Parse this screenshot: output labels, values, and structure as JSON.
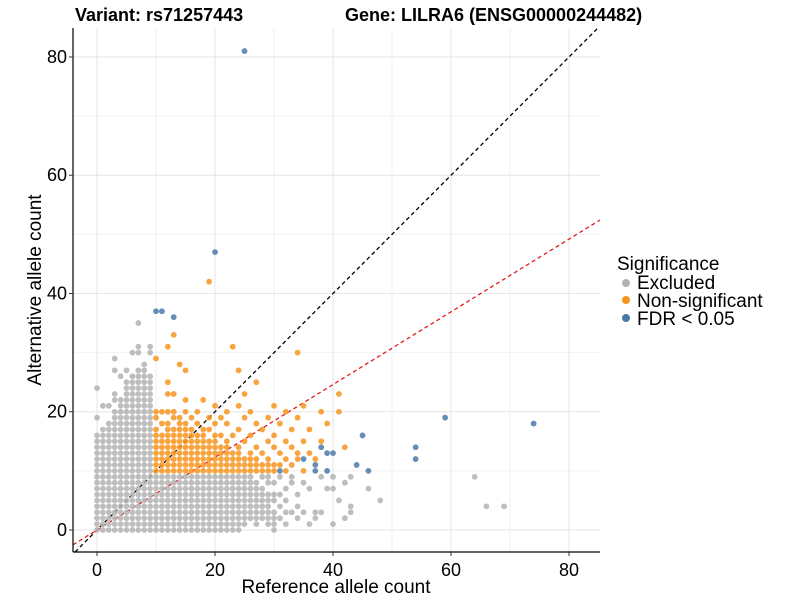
{
  "chart_data": {
    "type": "scatter",
    "title_left": "Variant: rs71257443",
    "title_right": "Gene: LILRA6 (ENSG00000244482)",
    "xlabel": "Reference allele count",
    "ylabel": "Alternative allele count",
    "xlim": [
      -4.07,
      85.25
    ],
    "ylim": [
      -3.72,
      84.9
    ],
    "x_ticks": [
      0,
      20,
      40,
      60,
      80
    ],
    "y_ticks": [
      0,
      20,
      40,
      60,
      80
    ],
    "x_tick_labels": [
      "0",
      "20",
      "40",
      "60",
      "80"
    ],
    "y_tick_labels": [
      "0",
      "20",
      "40",
      "60",
      "80"
    ],
    "grid": true,
    "reference_lines": [
      {
        "name": "identity",
        "slope": 1.0,
        "intercept": 0,
        "color": "#000000",
        "style": "dashed"
      },
      {
        "name": "expected-ratio",
        "slope": 0.615,
        "intercept": 0,
        "color": "#e41a1c",
        "style": "dashed"
      }
    ],
    "legend": {
      "title": "Significance",
      "placement": "right",
      "entries": [
        {
          "label": "Excluded",
          "color": "#b3b3b3"
        },
        {
          "label": "Non-significant",
          "color": "#f7941d"
        },
        {
          "label": "FDR < 0.05",
          "color": "#4a79a8"
        }
      ]
    },
    "series": [
      {
        "name": "Excluded",
        "color": "#b3b3b3",
        "columns": [
          {
            "x": 0,
            "y_ranges": [
              [
                0,
                16
              ]
            ],
            "y_extra": [
              19,
              24
            ]
          },
          {
            "x": 1,
            "y_ranges": [
              [
                0,
                17
              ]
            ],
            "y_extra": [
              21
            ]
          },
          {
            "x": 2,
            "y_ranges": [
              [
                0,
                18
              ]
            ],
            "y_extra": [
              21
            ]
          },
          {
            "x": 3,
            "y_ranges": [
              [
                0,
                20
              ]
            ],
            "y_extra": [
              22,
              23,
              27,
              29
            ]
          },
          {
            "x": 4,
            "y_ranges": [
              [
                0,
                22
              ]
            ],
            "y_extra": [
              26
            ]
          },
          {
            "x": 5,
            "y_ranges": [
              [
                0,
                25
              ]
            ],
            "y_extra": [
              27
            ]
          },
          {
            "x": 6,
            "y_ranges": [
              [
                0,
                26
              ]
            ],
            "y_extra": [
              30
            ]
          },
          {
            "x": 7,
            "y_ranges": [
              [
                0,
                27
              ]
            ],
            "y_extra": [
              30,
              31,
              35
            ]
          },
          {
            "x": 8,
            "y_ranges": [
              [
                0,
                28
              ]
            ],
            "y_extra": []
          },
          {
            "x": 9,
            "y_ranges": [
              [
                0,
                26
              ]
            ],
            "y_extra": [
              30,
              31
            ]
          },
          {
            "x": 10,
            "y_ranges": [
              [
                0,
                9
              ]
            ],
            "y_extra": []
          },
          {
            "x": 11,
            "y_ranges": [
              [
                0,
                9
              ]
            ],
            "y_extra": []
          },
          {
            "x": 12,
            "y_ranges": [
              [
                0,
                9
              ]
            ],
            "y_extra": []
          },
          {
            "x": 13,
            "y_ranges": [
              [
                0,
                9
              ]
            ],
            "y_extra": []
          },
          {
            "x": 14,
            "y_ranges": [
              [
                0,
                9
              ]
            ],
            "y_extra": []
          },
          {
            "x": 15,
            "y_ranges": [
              [
                0,
                9
              ]
            ],
            "y_extra": []
          },
          {
            "x": 16,
            "y_ranges": [
              [
                0,
                9
              ]
            ],
            "y_extra": []
          },
          {
            "x": 17,
            "y_ranges": [
              [
                0,
                9
              ]
            ],
            "y_extra": []
          },
          {
            "x": 18,
            "y_ranges": [
              [
                0,
                9
              ]
            ],
            "y_extra": []
          },
          {
            "x": 19,
            "y_ranges": [
              [
                0,
                9
              ]
            ],
            "y_extra": []
          },
          {
            "x": 20,
            "y_ranges": [
              [
                0,
                9
              ]
            ],
            "y_extra": []
          },
          {
            "x": 21,
            "y_ranges": [
              [
                0,
                9
              ]
            ],
            "y_extra": []
          },
          {
            "x": 22,
            "y_ranges": [
              [
                0,
                9
              ]
            ],
            "y_extra": []
          },
          {
            "x": 23,
            "y_ranges": [
              [
                0,
                9
              ]
            ],
            "y_extra": []
          },
          {
            "x": 24,
            "y_ranges": [
              [
                0,
                9
              ]
            ],
            "y_extra": []
          },
          {
            "x": 25,
            "y_ranges": [
              [
                1,
                9
              ]
            ],
            "y_extra": []
          },
          {
            "x": 26,
            "y_ranges": [
              [
                2,
                9
              ]
            ],
            "y_extra": []
          },
          {
            "x": 27,
            "y_ranges": [
              [
                1,
                8
              ]
            ],
            "y_extra": []
          },
          {
            "x": 28,
            "y_ranges": [
              [
                2,
                7
              ]
            ],
            "y_extra": [
              9
            ]
          },
          {
            "x": 29,
            "y_ranges": [
              [
                1,
                6
              ]
            ],
            "y_extra": [
              8,
              9
            ]
          },
          {
            "x": 30,
            "y_ranges": [
              [
                0,
                3
              ]
            ],
            "y_extra": [
              5,
              6,
              8
            ]
          },
          {
            "x": 31,
            "y_ranges": [],
            "y_extra": [
              2,
              4,
              6,
              9
            ]
          },
          {
            "x": 32,
            "y_ranges": [],
            "y_extra": [
              1,
              3,
              5,
              7
            ]
          },
          {
            "x": 33,
            "y_ranges": [],
            "y_extra": [
              3,
              8,
              9
            ]
          },
          {
            "x": 34,
            "y_ranges": [],
            "y_extra": [
              2,
              4,
              6
            ]
          },
          {
            "x": 35,
            "y_ranges": [],
            "y_extra": [
              3,
              8
            ]
          },
          {
            "x": 36,
            "y_ranges": [],
            "y_extra": [
              1,
              7
            ]
          },
          {
            "x": 37,
            "y_ranges": [],
            "y_extra": [
              2,
              3
            ]
          },
          {
            "x": 38,
            "y_ranges": [],
            "y_extra": [
              3,
              9
            ]
          },
          {
            "x": 39,
            "y_ranges": [],
            "y_extra": [
              7
            ]
          },
          {
            "x": 40,
            "y_ranges": [],
            "y_extra": [
              1,
              7,
              9
            ]
          },
          {
            "x": 41,
            "y_ranges": [],
            "y_extra": [
              5
            ]
          },
          {
            "x": 42,
            "y_ranges": [],
            "y_extra": [
              2,
              8
            ]
          },
          {
            "x": 43,
            "y_ranges": [],
            "y_extra": [
              3,
              4,
              9
            ]
          },
          {
            "x": 46,
            "y_ranges": [],
            "y_extra": [
              7
            ]
          },
          {
            "x": 48,
            "y_ranges": [],
            "y_extra": [
              5
            ]
          },
          {
            "x": 64,
            "y_ranges": [],
            "y_extra": [
              9
            ]
          },
          {
            "x": 66,
            "y_ranges": [],
            "y_extra": [
              4
            ]
          },
          {
            "x": 69,
            "y_ranges": [],
            "y_extra": [
              4
            ]
          }
        ]
      },
      {
        "name": "Non-significant",
        "color": "#f7941d",
        "columns": [
          {
            "x": 10,
            "y_ranges": [
              [
                10,
                17
              ]
            ],
            "y_extra": [
              19,
              20,
              29
            ]
          },
          {
            "x": 11,
            "y_ranges": [
              [
                10,
                16
              ]
            ],
            "y_extra": [
              18,
              20
            ]
          },
          {
            "x": 12,
            "y_ranges": [
              [
                10,
                18
              ]
            ],
            "y_extra": [
              20,
              23,
              25,
              31
            ]
          },
          {
            "x": 13,
            "y_ranges": [
              [
                10,
                17
              ]
            ],
            "y_extra": [
              19,
              20,
              23,
              33
            ]
          },
          {
            "x": 14,
            "y_ranges": [
              [
                10,
                19
              ]
            ],
            "y_extra": [
              28
            ]
          },
          {
            "x": 15,
            "y_ranges": [
              [
                10,
                18
              ]
            ],
            "y_extra": [
              20,
              22,
              27
            ]
          },
          {
            "x": 16,
            "y_ranges": [
              [
                10,
                17
              ]
            ],
            "y_extra": [
              19
            ]
          },
          {
            "x": 17,
            "y_ranges": [
              [
                10,
                16
              ]
            ],
            "y_extra": [
              18,
              20
            ]
          },
          {
            "x": 18,
            "y_ranges": [
              [
                10,
                17
              ]
            ],
            "y_extra": [
              22
            ]
          },
          {
            "x": 19,
            "y_ranges": [
              [
                10,
                15
              ]
            ],
            "y_extra": [
              17,
              19,
              42
            ]
          },
          {
            "x": 20,
            "y_ranges": [
              [
                10,
                16
              ]
            ],
            "y_extra": [
              18,
              21
            ]
          },
          {
            "x": 21,
            "y_ranges": [
              [
                10,
                14
              ]
            ],
            "y_extra": [
              16,
              19
            ]
          },
          {
            "x": 22,
            "y_ranges": [
              [
                10,
                15
              ]
            ],
            "y_extra": [
              18,
              20
            ]
          },
          {
            "x": 23,
            "y_ranges": [
              [
                10,
                13
              ]
            ],
            "y_extra": [
              16,
              31
            ]
          },
          {
            "x": 24,
            "y_ranges": [
              [
                10,
                14
              ]
            ],
            "y_extra": [
              17,
              21,
              27
            ]
          },
          {
            "x": 25,
            "y_ranges": [
              [
                10,
                12
              ]
            ],
            "y_extra": [
              15,
              19,
              23
            ]
          },
          {
            "x": 26,
            "y_ranges": [
              [
                10,
                13
              ]
            ],
            "y_extra": [
              16,
              20
            ]
          },
          {
            "x": 27,
            "y_ranges": [
              [
                10,
                12
              ]
            ],
            "y_extra": [
              14,
              18,
              25
            ]
          },
          {
            "x": 28,
            "y_ranges": [
              [
                10,
                11
              ]
            ],
            "y_extra": [
              13,
              17
            ]
          },
          {
            "x": 29,
            "y_ranges": [
              [
                10,
                12
              ]
            ],
            "y_extra": [
              15,
              19
            ]
          },
          {
            "x": 30,
            "y_ranges": [
              [
                10,
                11
              ]
            ],
            "y_extra": [
              14,
              16,
              21
            ]
          },
          {
            "x": 31,
            "y_ranges": [],
            "y_extra": [
              11,
              13,
              18
            ]
          },
          {
            "x": 32,
            "y_ranges": [],
            "y_extra": [
              10,
              12,
              15,
              20
            ]
          },
          {
            "x": 33,
            "y_ranges": [],
            "y_extra": [
              11,
              14,
              17
            ]
          },
          {
            "x": 34,
            "y_ranges": [],
            "y_extra": [
              12,
              13,
              19,
              30
            ]
          },
          {
            "x": 35,
            "y_ranges": [],
            "y_extra": [
              10,
              15,
              21
            ]
          },
          {
            "x": 36,
            "y_ranges": [],
            "y_extra": [
              13,
              17
            ]
          },
          {
            "x": 37,
            "y_ranges": [],
            "y_extra": [
              12
            ]
          },
          {
            "x": 38,
            "y_ranges": [],
            "y_extra": [
              15,
              20
            ]
          },
          {
            "x": 39,
            "y_ranges": [],
            "y_extra": [
              18
            ]
          },
          {
            "x": 41,
            "y_ranges": [],
            "y_extra": [
              20,
              23
            ]
          },
          {
            "x": 42,
            "y_ranges": [],
            "y_extra": [
              14
            ]
          }
        ]
      },
      {
        "name": "FDR < 0.05",
        "color": "#4a79a8",
        "points": [
          [
            25,
            81
          ],
          [
            20,
            47
          ],
          [
            10,
            37
          ],
          [
            11,
            37
          ],
          [
            13,
            36
          ],
          [
            31,
            10
          ],
          [
            35,
            12
          ],
          [
            37,
            11
          ],
          [
            37,
            10
          ],
          [
            38,
            14
          ],
          [
            39,
            13
          ],
          [
            40,
            13
          ],
          [
            39,
            10
          ],
          [
            44,
            11
          ],
          [
            45,
            16
          ],
          [
            46,
            10
          ],
          [
            54,
            14
          ],
          [
            54,
            12
          ],
          [
            59,
            19
          ],
          [
            74,
            18
          ]
        ]
      }
    ]
  }
}
